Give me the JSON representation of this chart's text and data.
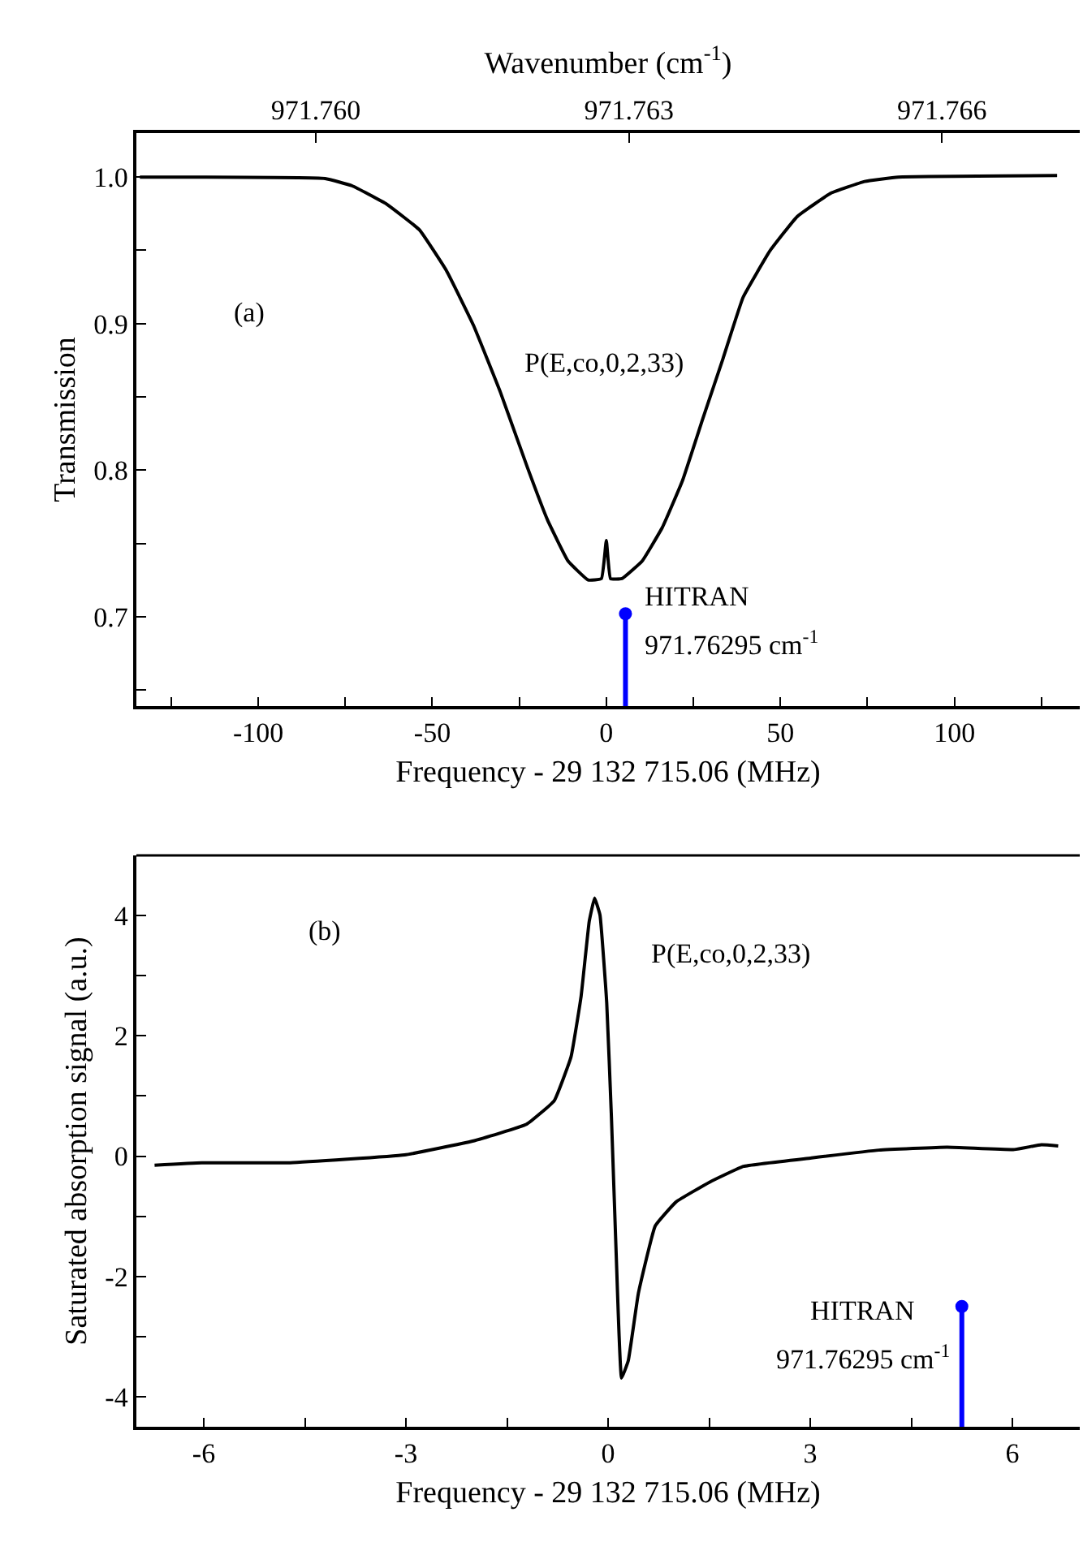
{
  "chart_data": [
    {
      "type": "line",
      "xlabel": "Frequency - 29 132 715.06 (MHz)",
      "ylabel": "Transmission",
      "x2label": "Wavenumber (cm$^{-1}$)",
      "xlim": [
        -135,
        136
      ],
      "ylim": [
        0.639,
        1.03
      ],
      "xticks": [
        {
          "value": -125,
          "label": null
        },
        -100,
        {
          "value": -75,
          "label": null
        },
        -50,
        {
          "value": -25,
          "label": null
        },
        0,
        {
          "value": 25,
          "label": null
        },
        50,
        {
          "value": 75,
          "label": null
        },
        100,
        {
          "value": 125,
          "label": null
        }
      ],
      "yticks": [
        {
          "value": 0.65,
          "label": null
        },
        0.7,
        {
          "value": 0.75,
          "label": null
        },
        0.8,
        {
          "value": 0.85,
          "label": null
        },
        0.9,
        {
          "value": 0.95,
          "label": null
        },
        {
          "value": 1.0,
          "label": "1.0"
        }
      ],
      "x2lim": [
        971.75828,
        971.76732
      ],
      "x2ticks": [
        {
          "value": 971.76,
          "label": "971.760"
        },
        971.763,
        971.766
      ],
      "annotations": [
        "(a)",
        "P(E,co,0,2,33)",
        "HITRAN",
        "971.76295 cm$^{-1}$"
      ],
      "series": [
        {
          "color": "#000000",
          "x": [
            -134,
            -80.8,
            -73,
            -63.4,
            -53.7,
            -45.9,
            -38.2,
            -30.4,
            -22.7,
            -16.9,
            -11,
            -5.2,
            -1.4,
            0,
            1.2,
            4.5,
            10.3,
            16.1,
            21.9,
            27.7,
            33.5,
            39.3,
            47.1,
            54.8,
            64.5,
            74.2,
            83.9,
            129.5
          ],
          "values": [
            1.0,
            0.999,
            0.994,
            0.982,
            0.964,
            0.936,
            0.899,
            0.853,
            0.802,
            0.766,
            0.738,
            0.725,
            0.726,
            0.752,
            0.726,
            0.726,
            0.738,
            0.761,
            0.793,
            0.835,
            0.876,
            0.918,
            0.95,
            0.973,
            0.989,
            0.997,
            1.0,
            1.001
          ]
        },
        {
          "type": "line",
          "color": "#0000ff",
          "x": [
            5.5,
            5.5
          ],
          "values": [
            0.639,
            0.702
          ]
        },
        {
          "type": "scatter",
          "color": "#0000ff",
          "x": [
            5.5
          ],
          "values": [
            0.702
          ]
        }
      ]
    },
    {
      "type": "line",
      "xlabel": "Frequency - 29 132 715.06 (MHz)",
      "ylabel": "Saturated absorption signal (a.u.)",
      "xlim": [
        -7,
        7
      ],
      "ylim": [
        -4.5,
        5
      ],
      "xticks": [
        {
          "value": -4.5,
          "label": null
        },
        -6,
        -3,
        {
          "value": -1.5,
          "label": null
        },
        0,
        {
          "value": 1.5,
          "label": null
        },
        3,
        {
          "value": 4.5,
          "label": null
        },
        6
      ],
      "yticks": [
        -4,
        {
          "value": -3,
          "label": null
        },
        -2,
        {
          "value": -1,
          "label": null
        },
        0,
        {
          "value": 1,
          "label": null
        },
        2,
        {
          "value": 3,
          "label": null
        },
        4
      ],
      "annotations": [
        "(b)",
        "P(E,co,0,2,33)",
        "HITRAN",
        "971.76295 cm$^{-1}$"
      ],
      "series": [
        {
          "color": "#000000",
          "x": [
            -6.73,
            -6.03,
            -4.72,
            -3.02,
            -2.01,
            -1.21,
            -0.8,
            -0.55,
            -0.4,
            -0.28,
            -0.2,
            -0.12,
            -0.02,
            0.05,
            0.12,
            0.2,
            0.3,
            0.45,
            0.7,
            1.01,
            1.51,
            2.01,
            3.02,
            4.02,
            5.03,
            6.03,
            6.43,
            6.68
          ],
          "values": [
            -0.15,
            -0.11,
            -0.11,
            0.02,
            0.25,
            0.53,
            0.92,
            1.65,
            2.66,
            3.9,
            4.29,
            4.01,
            2.55,
            0.64,
            -1.61,
            -3.69,
            -3.4,
            -2.28,
            -1.16,
            -0.76,
            -0.43,
            -0.17,
            -0.03,
            0.1,
            0.15,
            0.11,
            0.19,
            0.17
          ]
        },
        {
          "type": "line",
          "color": "#0000ff",
          "x": [
            5.25,
            5.25
          ],
          "values": [
            -4.5,
            -2.5
          ]
        },
        {
          "type": "scatter",
          "color": "#0000ff",
          "x": [
            5.25
          ],
          "values": [
            -2.5
          ]
        }
      ]
    }
  ]
}
